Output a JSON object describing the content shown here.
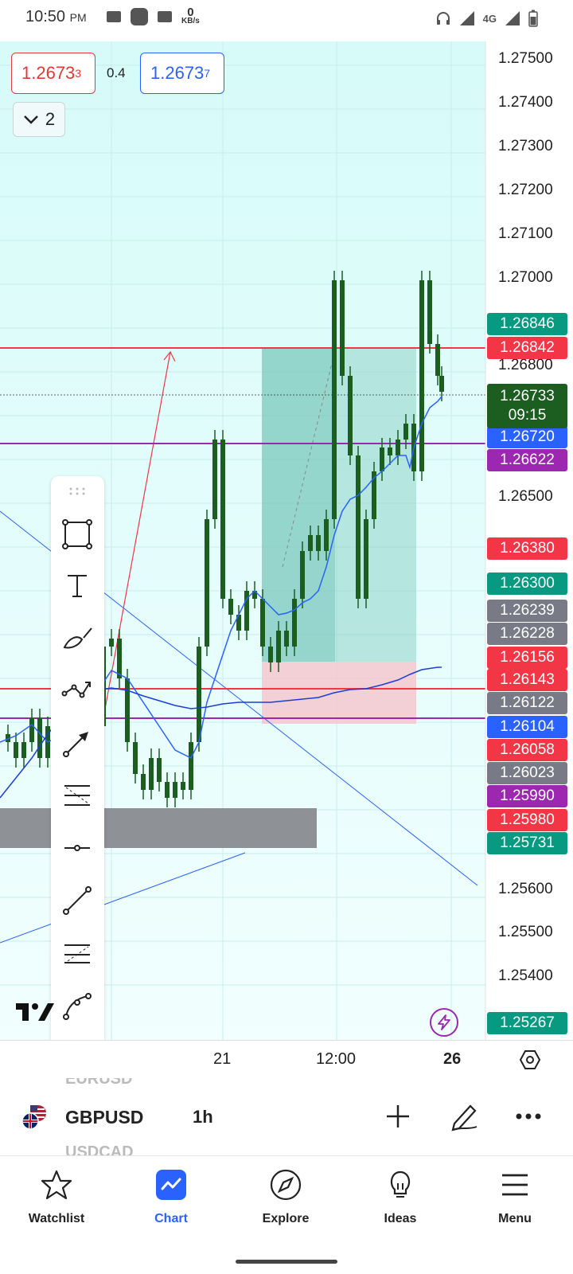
{
  "status_bar": {
    "time": "10:50",
    "ampm": "PM",
    "net_speed_value": "0",
    "net_speed_unit": "KB/s",
    "network": "4G"
  },
  "quote": {
    "bid_main": "1.2673",
    "bid_small": "3",
    "spread": "0.4",
    "ask_main": "1.2673",
    "ask_small": "7"
  },
  "layers": {
    "count": "2"
  },
  "price_axis": [
    "1.27500",
    "1.27400",
    "1.27300",
    "1.27200",
    "1.27100",
    "1.27000",
    "1.26800",
    "1.26500",
    "1.25600",
    "1.25500",
    "1.25400"
  ],
  "price_tags": [
    {
      "label": "1.26846",
      "color": "#089981"
    },
    {
      "label": "1.26842",
      "color": "#f23645"
    },
    {
      "label": "1.26720",
      "color": "#2962ff"
    },
    {
      "label": "1.26622",
      "color": "#9c27b0"
    },
    {
      "label": "1.26380",
      "color": "#f23645"
    },
    {
      "label": "1.26300",
      "color": "#089981"
    },
    {
      "label": "1.26239",
      "color": "#787b86"
    },
    {
      "label": "1.26228",
      "color": "#787b86"
    },
    {
      "label": "1.26156",
      "color": "#f23645"
    },
    {
      "label": "1.26143",
      "color": "#f23645"
    },
    {
      "label": "1.26122",
      "color": "#787b86"
    },
    {
      "label": "1.26104",
      "color": "#2962ff"
    },
    {
      "label": "1.26058",
      "color": "#f23645"
    },
    {
      "label": "1.26023",
      "color": "#787b86"
    },
    {
      "label": "1.25990",
      "color": "#9c27b0"
    },
    {
      "label": "1.25980",
      "color": "#f23645"
    },
    {
      "label": "1.25731",
      "color": "#089981"
    },
    {
      "label": "1.25267",
      "color": "#089981"
    }
  ],
  "current_price": {
    "price": "1.26733",
    "countdown": "09:15",
    "color": "#1b5e20"
  },
  "tools": [
    "rectangle-tool",
    "text-tool",
    "brush-tool",
    "path-tool",
    "arrow-tool",
    "fib-retracement-tool",
    "horizontal-ray-tool",
    "trend-line-tool",
    "pitchfork-tool",
    "curve-tool",
    "more-tools"
  ],
  "time_axis": {
    "labels": [
      "21",
      "12:00",
      "26"
    ]
  },
  "symbol_bar": {
    "prev_symbol": "EURUSD",
    "symbol": "GBPUSD",
    "next_symbol": "USDCAD",
    "interval": "1h"
  },
  "nav": {
    "items": [
      {
        "label": "Watchlist",
        "icon": "star-icon"
      },
      {
        "label": "Chart",
        "icon": "chart-icon"
      },
      {
        "label": "Explore",
        "icon": "compass-icon"
      },
      {
        "label": "Ideas",
        "icon": "lightbulb-icon"
      },
      {
        "label": "Menu",
        "icon": "hamburger-icon"
      }
    ],
    "active": "Chart"
  },
  "colors": {
    "chart_bg": "#defbfb",
    "bull": "#1b5e20",
    "red_line": "#f23645",
    "purple_line": "#9c27b0",
    "ma_blue": "#2962ff",
    "accent": "#2962ff"
  }
}
